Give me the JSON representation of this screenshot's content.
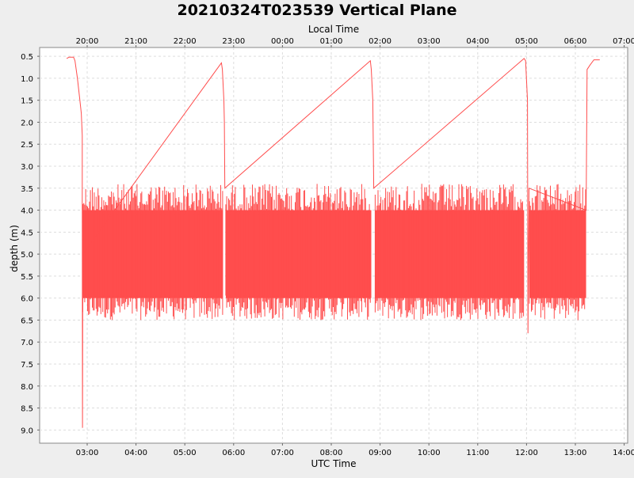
{
  "chart_data": {
    "type": "line",
    "title": "20210324T023539 Vertical Plane",
    "xlabel": "UTC Time",
    "x2label": "Local Time",
    "ylabel": "depth (m)",
    "ylim": [
      0.3,
      9.3
    ],
    "y_inverted": true,
    "grid": true,
    "legend": "none",
    "colors": {
      "series": "#ff4d4d",
      "background": "#eeeeee",
      "plot_background": "#ffffff",
      "grid": "#dddddd"
    },
    "x_ticks": [
      {
        "h": 3,
        "label": "03:00"
      },
      {
        "h": 4,
        "label": "04:00"
      },
      {
        "h": 5,
        "label": "05:00"
      },
      {
        "h": 6,
        "label": "06:00"
      },
      {
        "h": 7,
        "label": "07:00"
      },
      {
        "h": 8,
        "label": "08:00"
      },
      {
        "h": 9,
        "label": "09:00"
      },
      {
        "h": 10,
        "label": "10:00"
      },
      {
        "h": 11,
        "label": "11:00"
      },
      {
        "h": 12,
        "label": "12:00"
      },
      {
        "h": 13,
        "label": "13:00"
      },
      {
        "h": 14,
        "label": "14:00"
      }
    ],
    "x2_ticks": [
      {
        "h": 3,
        "label": "20:00"
      },
      {
        "h": 4,
        "label": "21:00"
      },
      {
        "h": 5,
        "label": "22:00"
      },
      {
        "h": 6,
        "label": "23:00"
      },
      {
        "h": 7,
        "label": "00:00"
      },
      {
        "h": 8,
        "label": "01:00"
      },
      {
        "h": 9,
        "label": "02:00"
      },
      {
        "h": 10,
        "label": "03:00"
      },
      {
        "h": 11,
        "label": "04:00"
      },
      {
        "h": 12,
        "label": "05:00"
      },
      {
        "h": 13,
        "label": "06:00"
      },
      {
        "h": 14,
        "label": "07:00"
      }
    ],
    "y_ticks": [
      "0.5",
      "1.0",
      "1.5",
      "2.0",
      "2.5",
      "3.0",
      "3.5",
      "4.0",
      "4.5",
      "5.0",
      "5.5",
      "6.0",
      "6.5",
      "7.0",
      "7.5",
      "8.0",
      "8.5",
      "9.0"
    ],
    "series": [
      {
        "profile": [
          [
            2.58,
            0.55
          ],
          [
            2.63,
            0.52
          ],
          [
            2.72,
            0.52
          ],
          [
            2.75,
            0.6
          ],
          [
            2.8,
            1.0
          ],
          [
            2.85,
            1.5
          ],
          [
            2.88,
            1.8
          ],
          [
            2.9,
            2.3
          ],
          [
            2.9,
            4.0
          ],
          [
            2.905,
            8.95
          ],
          [
            2.91,
            5.0
          ],
          [
            5.75,
            0.65
          ],
          [
            5.77,
            0.8
          ],
          [
            5.8,
            1.5
          ],
          [
            5.81,
            2.0
          ],
          [
            5.82,
            3.5
          ],
          [
            8.8,
            0.6
          ],
          [
            8.82,
            0.8
          ],
          [
            8.85,
            1.5
          ],
          [
            8.87,
            3.5
          ],
          [
            11.95,
            0.55
          ],
          [
            11.98,
            0.6
          ],
          [
            12.02,
            1.5
          ],
          [
            12.03,
            6.8
          ],
          [
            12.05,
            3.5
          ],
          [
            13.22,
            4.0
          ],
          [
            13.24,
            0.8
          ],
          [
            13.3,
            0.7
          ],
          [
            13.38,
            0.58
          ],
          [
            13.5,
            0.58
          ]
        ],
        "oscillation_segments": [
          {
            "start": 2.91,
            "end": 5.78,
            "min_depth": 3.4,
            "max_depth": 6.5
          },
          {
            "start": 5.84,
            "end": 8.82,
            "min_depth": 3.4,
            "max_depth": 6.5
          },
          {
            "start": 8.9,
            "end": 11.95,
            "min_depth": 3.4,
            "max_depth": 6.5
          },
          {
            "start": 12.06,
            "end": 13.22,
            "min_depth": 3.4,
            "max_depth": 6.5
          }
        ]
      }
    ]
  }
}
